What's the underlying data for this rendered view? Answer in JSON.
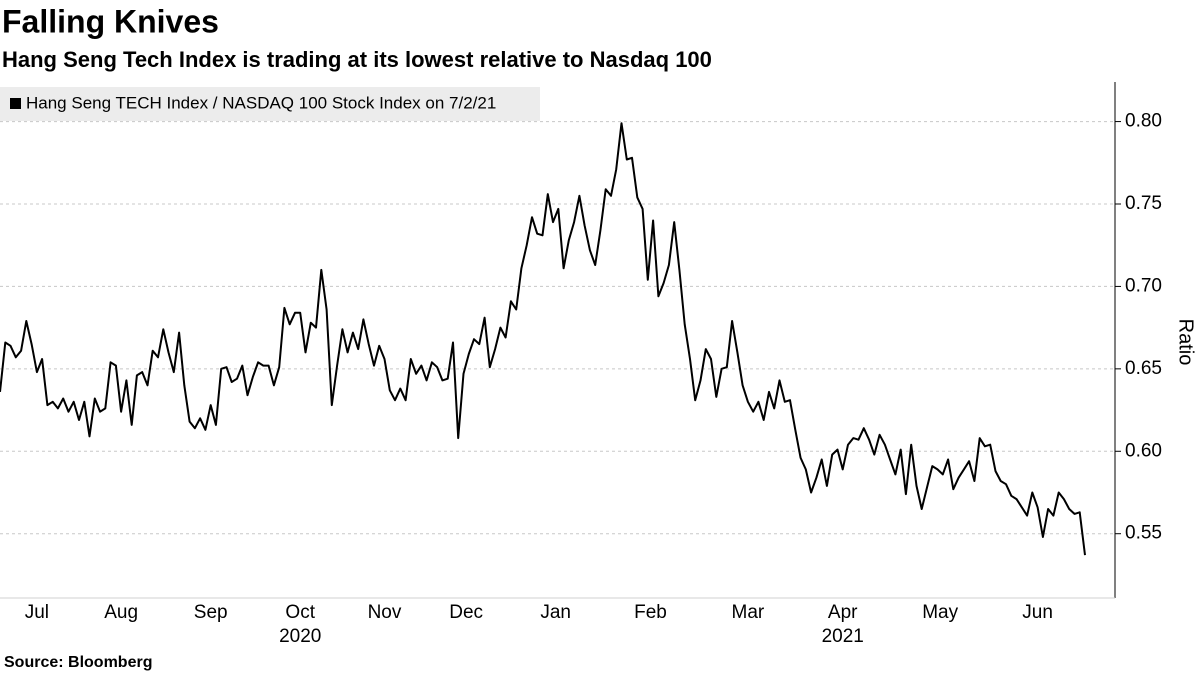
{
  "chart_data": {
    "type": "line",
    "title": "Falling Knives",
    "subtitle": "Hang Seng Tech Index is trading at its lowest relative to Nasdaq 100",
    "source": "Source: Bloomberg",
    "y_label": "Ratio",
    "x": [
      "2020-07",
      "2020-07",
      "2020-07",
      "2020-07",
      "2020-07",
      "2020-07",
      "2020-07",
      "2020-07",
      "2020-07",
      "2020-07",
      "2020-07",
      "2020-07",
      "2020-07",
      "2020-07",
      "2020-07",
      "2020-08",
      "2020-08",
      "2020-08",
      "2020-08",
      "2020-08",
      "2020-08",
      "2020-08",
      "2020-08",
      "2020-08",
      "2020-08",
      "2020-08",
      "2020-08",
      "2020-08",
      "2020-08",
      "2020-08",
      "2020-08",
      "2020-08",
      "2020-09",
      "2020-09",
      "2020-09",
      "2020-09",
      "2020-09",
      "2020-09",
      "2020-09",
      "2020-09",
      "2020-09",
      "2020-09",
      "2020-09",
      "2020-09",
      "2020-09",
      "2020-09",
      "2020-09",
      "2020-09",
      "2020-09",
      "2020-10",
      "2020-10",
      "2020-10",
      "2020-10",
      "2020-10",
      "2020-10",
      "2020-10",
      "2020-10",
      "2020-10",
      "2020-10",
      "2020-10",
      "2020-10",
      "2020-10",
      "2020-10",
      "2020-10",
      "2020-10",
      "2020-10",
      "2020-11",
      "2020-11",
      "2020-11",
      "2020-11",
      "2020-11",
      "2020-11",
      "2020-11",
      "2020-11",
      "2020-11",
      "2020-11",
      "2020-11",
      "2020-11",
      "2020-11",
      "2020-11",
      "2020-11",
      "2020-12",
      "2020-12",
      "2020-12",
      "2020-12",
      "2020-12",
      "2020-12",
      "2020-12",
      "2020-12",
      "2020-12",
      "2020-12",
      "2020-12",
      "2020-12",
      "2020-12",
      "2020-12",
      "2020-12",
      "2020-12",
      "2021-01",
      "2021-01",
      "2021-01",
      "2021-01",
      "2021-01",
      "2021-01",
      "2021-01",
      "2021-01",
      "2021-01",
      "2021-01",
      "2021-01",
      "2021-01",
      "2021-01",
      "2021-01",
      "2021-01",
      "2021-01",
      "2021-01",
      "2021-01",
      "2021-02",
      "2021-02",
      "2021-02",
      "2021-02",
      "2021-02",
      "2021-02",
      "2021-02",
      "2021-02",
      "2021-02",
      "2021-02",
      "2021-02",
      "2021-02",
      "2021-02",
      "2021-02",
      "2021-02",
      "2021-02",
      "2021-02",
      "2021-02",
      "2021-03",
      "2021-03",
      "2021-03",
      "2021-03",
      "2021-03",
      "2021-03",
      "2021-03",
      "2021-03",
      "2021-03",
      "2021-03",
      "2021-03",
      "2021-03",
      "2021-03",
      "2021-03",
      "2021-03",
      "2021-03",
      "2021-03",
      "2021-03",
      "2021-03",
      "2021-04",
      "2021-04",
      "2021-04",
      "2021-04",
      "2021-04",
      "2021-04",
      "2021-04",
      "2021-04",
      "2021-04",
      "2021-04",
      "2021-04",
      "2021-04",
      "2021-04",
      "2021-04",
      "2021-04",
      "2021-04",
      "2021-04",
      "2021-05",
      "2021-05",
      "2021-05",
      "2021-05",
      "2021-05",
      "2021-05",
      "2021-05",
      "2021-05",
      "2021-05",
      "2021-05",
      "2021-05",
      "2021-05",
      "2021-05",
      "2021-05",
      "2021-05",
      "2021-05",
      "2021-05",
      "2021-05",
      "2021-05",
      "2021-05",
      "2021-06",
      "2021-06",
      "2021-06",
      "2021-06",
      "2021-06",
      "2021-06",
      "2021-06",
      "2021-06",
      "2021-06",
      "2021-06",
      "2021-06",
      "2021-06",
      "2021-06",
      "2021-06",
      "2021-06",
      "2021-06",
      "2021-06",
      "2021-07"
    ],
    "series": [
      {
        "name": "Hang Seng TECH Index / NASDAQ 100 Stock Index on 7/2/21",
        "color": "#000000",
        "values": [
          0.636,
          0.666,
          0.664,
          0.657,
          0.661,
          0.679,
          0.665,
          0.648,
          0.656,
          0.628,
          0.63,
          0.626,
          0.632,
          0.624,
          0.63,
          0.619,
          0.63,
          0.609,
          0.632,
          0.624,
          0.626,
          0.654,
          0.652,
          0.624,
          0.643,
          0.616,
          0.646,
          0.648,
          0.64,
          0.661,
          0.657,
          0.674,
          0.66,
          0.648,
          0.672,
          0.64,
          0.618,
          0.614,
          0.62,
          0.613,
          0.628,
          0.616,
          0.65,
          0.651,
          0.642,
          0.644,
          0.652,
          0.634,
          0.645,
          0.654,
          0.652,
          0.652,
          0.64,
          0.651,
          0.687,
          0.677,
          0.684,
          0.684,
          0.66,
          0.678,
          0.675,
          0.71,
          0.686,
          0.628,
          0.652,
          0.674,
          0.66,
          0.672,
          0.662,
          0.68,
          0.665,
          0.652,
          0.664,
          0.656,
          0.637,
          0.631,
          0.638,
          0.631,
          0.656,
          0.647,
          0.652,
          0.643,
          0.654,
          0.651,
          0.643,
          0.644,
          0.666,
          0.608,
          0.647,
          0.659,
          0.668,
          0.665,
          0.681,
          0.651,
          0.662,
          0.675,
          0.669,
          0.691,
          0.686,
          0.711,
          0.725,
          0.742,
          0.732,
          0.731,
          0.756,
          0.739,
          0.747,
          0.711,
          0.728,
          0.739,
          0.755,
          0.737,
          0.722,
          0.713,
          0.734,
          0.759,
          0.755,
          0.771,
          0.799,
          0.777,
          0.778,
          0.754,
          0.747,
          0.704,
          0.74,
          0.694,
          0.702,
          0.713,
          0.739,
          0.71,
          0.677,
          0.656,
          0.631,
          0.643,
          0.662,
          0.656,
          0.633,
          0.65,
          0.651,
          0.679,
          0.66,
          0.64,
          0.63,
          0.624,
          0.63,
          0.619,
          0.636,
          0.626,
          0.643,
          0.63,
          0.631,
          0.613,
          0.596,
          0.589,
          0.575,
          0.584,
          0.595,
          0.579,
          0.598,
          0.601,
          0.589,
          0.604,
          0.608,
          0.607,
          0.614,
          0.607,
          0.598,
          0.61,
          0.604,
          0.595,
          0.586,
          0.601,
          0.574,
          0.604,
          0.579,
          0.565,
          0.578,
          0.591,
          0.589,
          0.586,
          0.595,
          0.577,
          0.584,
          0.589,
          0.594,
          0.582,
          0.608,
          0.603,
          0.604,
          0.588,
          0.582,
          0.58,
          0.573,
          0.571,
          0.566,
          0.561,
          0.575,
          0.566,
          0.548,
          0.565,
          0.561,
          0.575,
          0.571,
          0.565,
          0.562,
          0.563,
          0.537
        ]
      }
    ],
    "xticks": [
      {
        "value": "2020-07",
        "label": "Jul"
      },
      {
        "value": "2020-08",
        "label": "Aug"
      },
      {
        "value": "2020-09",
        "label": "Sep"
      },
      {
        "value": "2020-10",
        "label": "Oct"
      },
      {
        "value": "2020-11",
        "label": "Nov"
      },
      {
        "value": "2020-12",
        "label": "Dec"
      },
      {
        "value": "2021-01",
        "label": "Jan"
      },
      {
        "value": "2021-02",
        "label": "Feb"
      },
      {
        "value": "2021-03",
        "label": "Mar"
      },
      {
        "value": "2021-04",
        "label": "Apr"
      },
      {
        "value": "2021-05",
        "label": "May"
      },
      {
        "value": "2021-06",
        "label": "Jun"
      }
    ],
    "year_labels": [
      {
        "value": "2020-10",
        "label": "2020"
      },
      {
        "value": "2021-04",
        "label": "2021"
      }
    ],
    "ylim": [
      0.511,
      0.824
    ],
    "yticks": [
      0.55,
      {
        "value": 0.6,
        "label": "0.60"
      },
      0.65,
      {
        "value": 0.7,
        "label": "0.70"
      },
      0.75,
      {
        "value": 0.8,
        "label": "0.80"
      }
    ],
    "grid": true
  }
}
